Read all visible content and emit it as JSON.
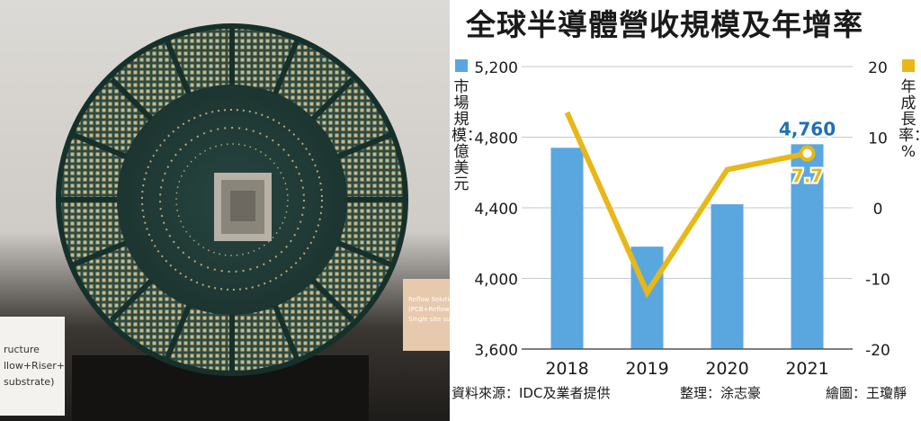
{
  "title": "全球半導體營收規模及年增率",
  "left_axis_label": "市場規模：億美元",
  "right_axis_label": "年成長率：%",
  "footer": {
    "source": "資料來源：IDC及業者提供",
    "editor": "整理：涂志豪",
    "illustrator": "繪圖：王瓊靜"
  },
  "photo": {
    "label_lines": [
      "ructure",
      "llow+Riser+",
      "substrate)"
    ],
    "card_lines": [
      "Reflow Solution",
      "(PCB+Reflow+Riser+",
      "Single site substrate"
    ]
  },
  "colors": {
    "bar": "#5aa7e0",
    "line": "#e8b818",
    "annotation_blue": "#1f6fb5",
    "annotation_gold": "#e8b818"
  },
  "chart_data": {
    "type": "bar+line",
    "categories": [
      "2018",
      "2019",
      "2020",
      "2021"
    ],
    "series": [
      {
        "name": "市場規模",
        "type": "bar",
        "axis": "left",
        "values": [
          4740,
          4180,
          4420,
          4760
        ]
      },
      {
        "name": "年成長率",
        "type": "line",
        "axis": "right",
        "values": [
          13.5,
          -12.0,
          5.4,
          7.7
        ]
      }
    ],
    "left_axis": {
      "ylim": [
        3600,
        5200
      ],
      "ticks": [
        "3,600",
        "4,000",
        "4,400",
        "4,800",
        "5,200"
      ]
    },
    "right_axis": {
      "ylim": [
        -20,
        20
      ],
      "ticks": [
        "-20",
        "-10",
        "0",
        "10",
        "20"
      ]
    },
    "annotations": [
      {
        "text": "4,760",
        "category": "2021",
        "series": "市場規模"
      },
      {
        "text": "7.7",
        "category": "2021",
        "series": "年成長率"
      }
    ],
    "grid": true
  }
}
